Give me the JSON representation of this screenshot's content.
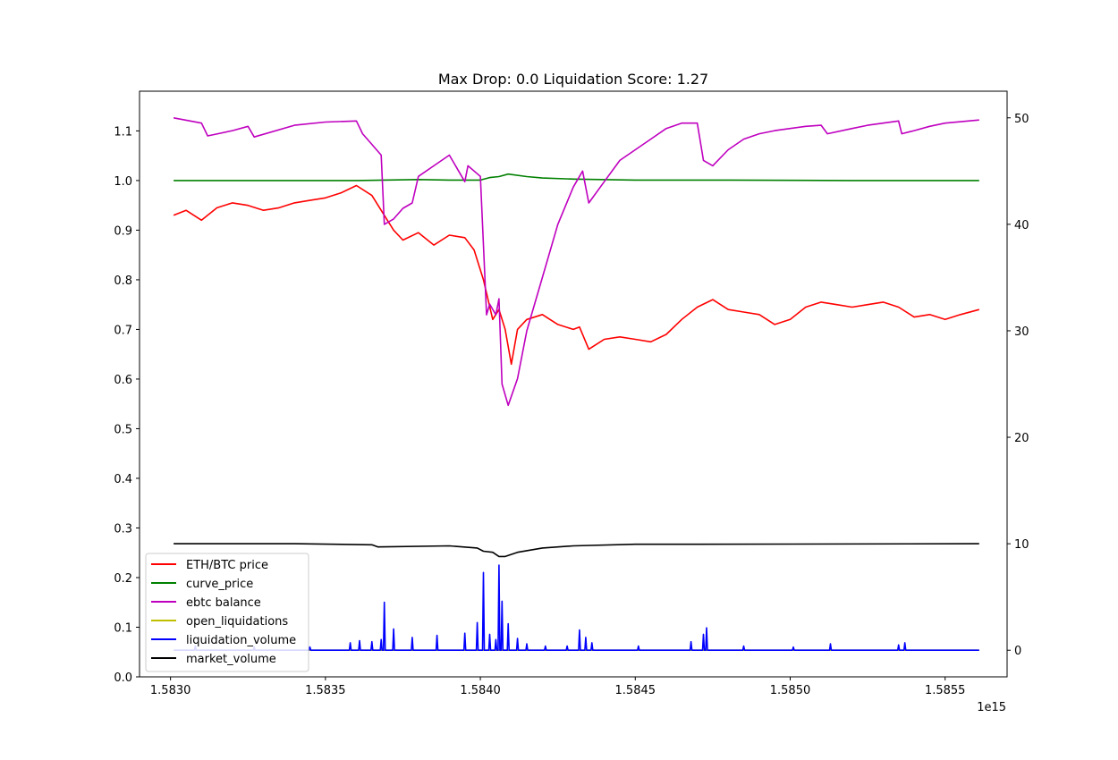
{
  "chart_data": {
    "type": "line",
    "title": "Max Drop: 0.0 Liquidation Score: 1.27",
    "x_offset_label": "1e15",
    "xlim": [
      1.5829,
      1.5857
    ],
    "x_ticks": [
      {
        "value": 1.583,
        "label": "1.5830"
      },
      {
        "value": 1.5835,
        "label": "1.5835"
      },
      {
        "value": 1.584,
        "label": "1.5840"
      },
      {
        "value": 1.5845,
        "label": "1.5845"
      },
      {
        "value": 1.585,
        "label": "1.5850"
      },
      {
        "value": 1.5855,
        "label": "1.5855"
      }
    ],
    "ylim_left": [
      0.0,
      1.18
    ],
    "y_ticks_left": [
      {
        "value": 0.0,
        "label": "0.0"
      },
      {
        "value": 0.1,
        "label": "0.1"
      },
      {
        "value": 0.2,
        "label": "0.2"
      },
      {
        "value": 0.3,
        "label": "0.3"
      },
      {
        "value": 0.4,
        "label": "0.4"
      },
      {
        "value": 0.5,
        "label": "0.5"
      },
      {
        "value": 0.6,
        "label": "0.6"
      },
      {
        "value": 0.7,
        "label": "0.7"
      },
      {
        "value": 0.8,
        "label": "0.8"
      },
      {
        "value": 0.9,
        "label": "0.9"
      },
      {
        "value": 1.0,
        "label": "1.0"
      },
      {
        "value": 1.1,
        "label": "1.1"
      }
    ],
    "ylim_right": [
      -2.5,
      52.5
    ],
    "y_ticks_right": [
      {
        "value": 0,
        "label": "0"
      },
      {
        "value": 10,
        "label": "10"
      },
      {
        "value": 20,
        "label": "20"
      },
      {
        "value": 30,
        "label": "30"
      },
      {
        "value": 40,
        "label": "40"
      },
      {
        "value": 50,
        "label": "50"
      }
    ],
    "grid": false,
    "legend_position": "lower-left",
    "series": [
      {
        "name": "ETH/BTC price",
        "color": "#ff0000",
        "axis": "left",
        "x": [
          1.58301,
          1.58305,
          1.5831,
          1.58315,
          1.5832,
          1.58325,
          1.5833,
          1.58335,
          1.5834,
          1.58345,
          1.5835,
          1.58355,
          1.5836,
          1.58365,
          1.5837,
          1.58372,
          1.58375,
          1.5838,
          1.58385,
          1.5839,
          1.58395,
          1.58398,
          1.58401,
          1.58404,
          1.58406,
          1.58408,
          1.5841,
          1.58412,
          1.58415,
          1.5842,
          1.58425,
          1.5843,
          1.58432,
          1.58435,
          1.5844,
          1.58445,
          1.5845,
          1.58455,
          1.5846,
          1.58465,
          1.5847,
          1.58475,
          1.5848,
          1.58485,
          1.5849,
          1.58495,
          1.585,
          1.58505,
          1.5851,
          1.58515,
          1.5852,
          1.58525,
          1.5853,
          1.58535,
          1.5854,
          1.58545,
          1.5855,
          1.58555,
          1.58561
        ],
        "values": [
          0.93,
          0.94,
          0.92,
          0.945,
          0.955,
          0.95,
          0.94,
          0.945,
          0.955,
          0.96,
          0.965,
          0.975,
          0.99,
          0.97,
          0.92,
          0.9,
          0.88,
          0.895,
          0.87,
          0.89,
          0.885,
          0.86,
          0.8,
          0.72,
          0.74,
          0.7,
          0.63,
          0.7,
          0.72,
          0.73,
          0.71,
          0.7,
          0.705,
          0.66,
          0.68,
          0.685,
          0.68,
          0.675,
          0.69,
          0.72,
          0.745,
          0.76,
          0.74,
          0.735,
          0.73,
          0.71,
          0.72,
          0.745,
          0.755,
          0.75,
          0.745,
          0.75,
          0.755,
          0.745,
          0.725,
          0.73,
          0.72,
          0.73,
          0.74
        ]
      },
      {
        "name": "curve_price",
        "color": "#008000",
        "axis": "left",
        "x": [
          1.58301,
          1.5832,
          1.5834,
          1.5836,
          1.5838,
          1.5839,
          1.584,
          1.58403,
          1.58406,
          1.58409,
          1.58415,
          1.5842,
          1.5843,
          1.5845,
          1.5848,
          1.5852,
          1.58561
        ],
        "values": [
          1.0,
          1.0,
          1.0,
          1.0,
          1.002,
          1.001,
          1.001,
          1.006,
          1.008,
          1.013,
          1.008,
          1.005,
          1.003,
          1.001,
          1.001,
          1.0,
          1.0
        ]
      },
      {
        "name": "ebtc balance",
        "color": "#bf00bf",
        "axis": "right",
        "x": [
          1.58301,
          1.5831,
          1.58312,
          1.5832,
          1.58325,
          1.58327,
          1.5834,
          1.5835,
          1.5836,
          1.58362,
          1.58365,
          1.58368,
          1.58369,
          1.58372,
          1.58375,
          1.58378,
          1.5838,
          1.58385,
          1.5839,
          1.58395,
          1.58396,
          1.584,
          1.58402,
          1.58403,
          1.58405,
          1.58406,
          1.58407,
          1.58409,
          1.58412,
          1.58415,
          1.5842,
          1.58425,
          1.5843,
          1.58433,
          1.58435,
          1.5844,
          1.58445,
          1.5845,
          1.58455,
          1.5846,
          1.58465,
          1.5847,
          1.58472,
          1.58475,
          1.5848,
          1.58485,
          1.5849,
          1.58495,
          1.585,
          1.58505,
          1.5851,
          1.58512,
          1.5852,
          1.58525,
          1.5853,
          1.58535,
          1.58536,
          1.5854,
          1.58545,
          1.5855,
          1.58561
        ],
        "values": [
          50.0,
          49.5,
          48.3,
          48.8,
          49.2,
          48.2,
          49.3,
          49.6,
          49.7,
          48.5,
          47.5,
          46.5,
          40.0,
          40.5,
          41.5,
          42.0,
          44.5,
          45.5,
          46.5,
          44.0,
          45.5,
          44.5,
          31.5,
          32.5,
          31.5,
          33.0,
          25.0,
          23.0,
          25.5,
          30.0,
          35.0,
          40.0,
          43.5,
          45.0,
          42.0,
          44.0,
          46.0,
          47.0,
          48.0,
          49.0,
          49.5,
          49.5,
          46.0,
          45.5,
          47.0,
          48.0,
          48.5,
          48.8,
          49.0,
          49.2,
          49.3,
          48.5,
          49.0,
          49.3,
          49.5,
          49.7,
          48.5,
          48.8,
          49.2,
          49.5,
          49.8
        ]
      },
      {
        "name": "open_liquidations",
        "color": "#bfbf00",
        "axis": "right",
        "x": [
          1.58301,
          1.58561
        ],
        "values": [
          0,
          0
        ]
      },
      {
        "name": "liquidation_volume",
        "color": "#0000ff",
        "axis": "right",
        "baseline": 0,
        "spikes_x": [
          1.58308,
          1.58327,
          1.58345,
          1.58358,
          1.58361,
          1.58365,
          1.58368,
          1.58369,
          1.58372,
          1.58378,
          1.58386,
          1.58395,
          1.58399,
          1.58401,
          1.58403,
          1.58405,
          1.58406,
          1.58407,
          1.58409,
          1.58412,
          1.58415,
          1.58421,
          1.58428,
          1.58432,
          1.58434,
          1.58436,
          1.58451,
          1.58468,
          1.58472,
          1.58473,
          1.58485,
          1.58501,
          1.58513,
          1.58535,
          1.58537
        ],
        "spikes_values": [
          0.4,
          0.3,
          0.3,
          0.7,
          0.9,
          0.8,
          1.0,
          4.5,
          2.0,
          1.2,
          1.4,
          1.6,
          2.6,
          7.3,
          1.5,
          1.0,
          8.0,
          4.6,
          2.5,
          1.1,
          0.6,
          0.4,
          0.4,
          1.9,
          1.2,
          0.7,
          0.4,
          0.8,
          1.5,
          2.1,
          0.4,
          0.3,
          0.6,
          0.5,
          0.7
        ]
      },
      {
        "name": "market_volume",
        "color": "#000000",
        "axis": "right",
        "x": [
          1.58301,
          1.5834,
          1.58365,
          1.58367,
          1.5839,
          1.58399,
          1.58401,
          1.58404,
          1.58406,
          1.58408,
          1.58412,
          1.5842,
          1.5843,
          1.5845,
          1.5847,
          1.58561
        ],
        "values": [
          10.0,
          10.0,
          9.9,
          9.7,
          9.8,
          9.6,
          9.3,
          9.2,
          8.8,
          8.8,
          9.2,
          9.6,
          9.8,
          9.95,
          9.95,
          10.0
        ]
      }
    ]
  }
}
